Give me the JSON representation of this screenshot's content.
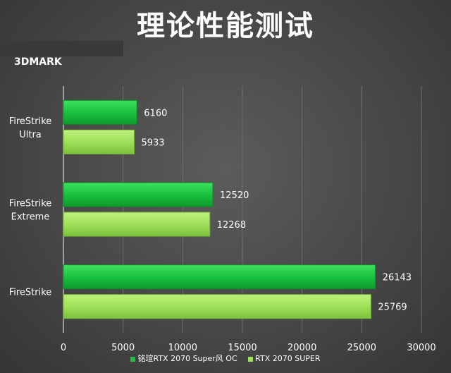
{
  "chart_data": {
    "type": "bar",
    "orientation": "horizontal",
    "title": "理论性能测试",
    "subtitle": "3DMARK",
    "categories": [
      {
        "lines": [
          "FireStrike",
          "Ultra"
        ]
      },
      {
        "lines": [
          "FireStrike",
          "Extreme"
        ]
      },
      {
        "lines": [
          "FireStrike"
        ]
      }
    ],
    "series": [
      {
        "name": "铭瑄RTX 2070 Super风 OC",
        "values": [
          6160,
          12520,
          26143
        ],
        "color": "#19c23f"
      },
      {
        "name": "RTX 2070 SUPER",
        "values": [
          5933,
          12268,
          25769
        ],
        "color": "#9fe05a"
      }
    ],
    "xlim": [
      0,
      30000
    ],
    "xticks": [
      "0",
      "5000",
      "10000",
      "15000",
      "20000",
      "25000",
      "30000"
    ],
    "grid": true,
    "legend": "bottom"
  }
}
